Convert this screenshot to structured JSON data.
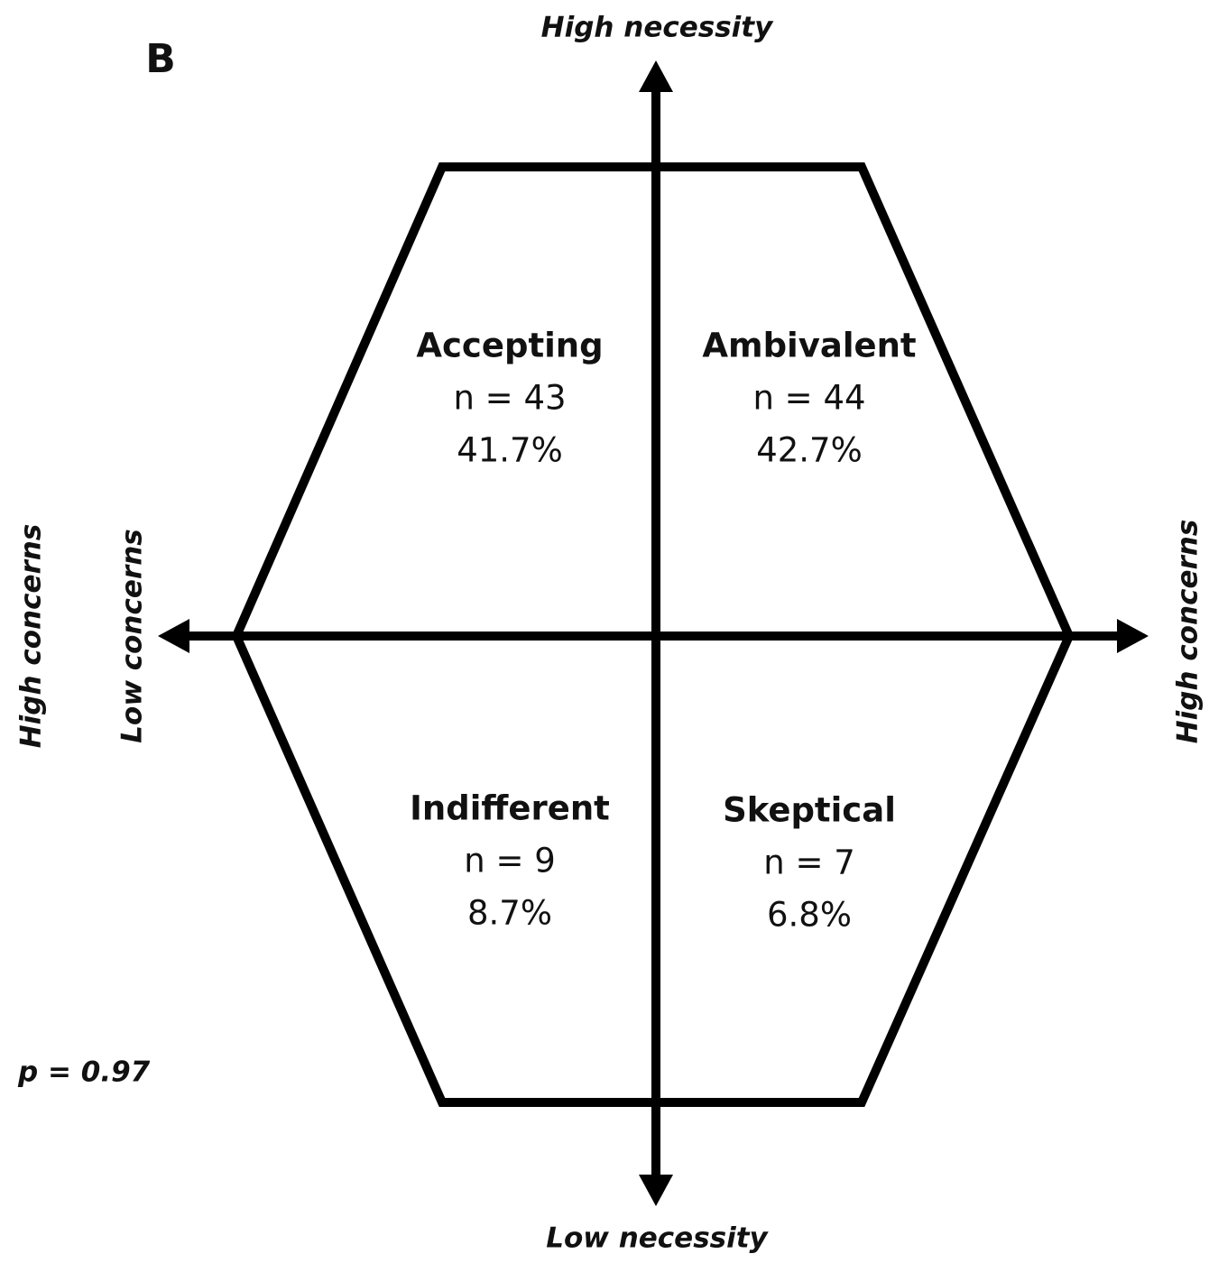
{
  "panel_label": "B",
  "axes": {
    "top": "High necessity",
    "bottom": "Low necessity",
    "left_outer": "High concerns",
    "left_inner": "Low concerns",
    "right": "High concerns"
  },
  "quadrants": [
    {
      "name": "Accepting",
      "n": "n = 43",
      "percent": "41.7%"
    },
    {
      "name": "Ambivalent",
      "n": "n = 44",
      "percent": "42.7%"
    },
    {
      "name": "Indifferent",
      "n": "n = 9",
      "percent": "8.7%"
    },
    {
      "name": "Skeptical",
      "n": "n = 7",
      "percent": "6.8%"
    }
  ],
  "p_value": "p = 0.97"
}
